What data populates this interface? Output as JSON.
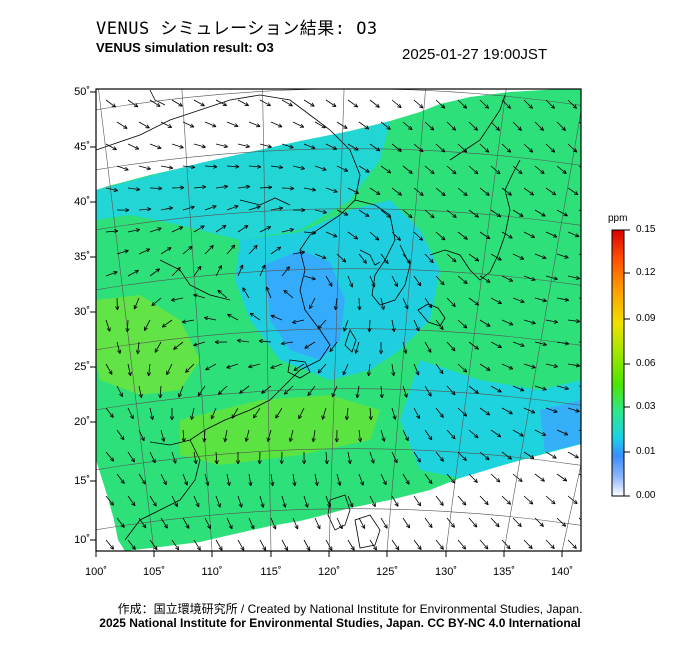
{
  "header": {
    "title_jp": "VENUS シミュレーション結果: O3",
    "title_en": "VENUS simulation result: O3",
    "timestamp": "2025-01-27 19:00JST"
  },
  "map": {
    "lat_labels": [
      "50˚",
      "45˚",
      "40˚",
      "35˚",
      "30˚",
      "25˚",
      "20˚",
      "15˚",
      "10˚"
    ],
    "lon_labels": [
      "100˚",
      "105˚",
      "110˚",
      "115˚",
      "120˚",
      "125˚",
      "130˚",
      "135˚",
      "140˚"
    ],
    "frame_color": "#000000",
    "land_outline_color": "#000000",
    "graticule_color": "#555555",
    "vector_color": "#000000"
  },
  "colorbar": {
    "unit": "ppm",
    "tick_labels": [
      "0.15",
      "0.12",
      "0.09",
      "0.06",
      "0.03",
      "0.01",
      "0.00"
    ],
    "colors": [
      "#ffffff",
      "#8fb8ff",
      "#3a8dff",
      "#19d2e6",
      "#2ee88a",
      "#4ce600",
      "#a8e600",
      "#f0e000",
      "#ff9a00",
      "#ff4a00",
      "#d90000"
    ]
  },
  "footer": {
    "credit_line1": "作成：国立環境研究所 / Created by National Institute for Environmental Studies, Japan.",
    "credit_line2": "2025 National Institute for Environmental Studies, Japan. CC BY-NC 4.0 International"
  }
}
